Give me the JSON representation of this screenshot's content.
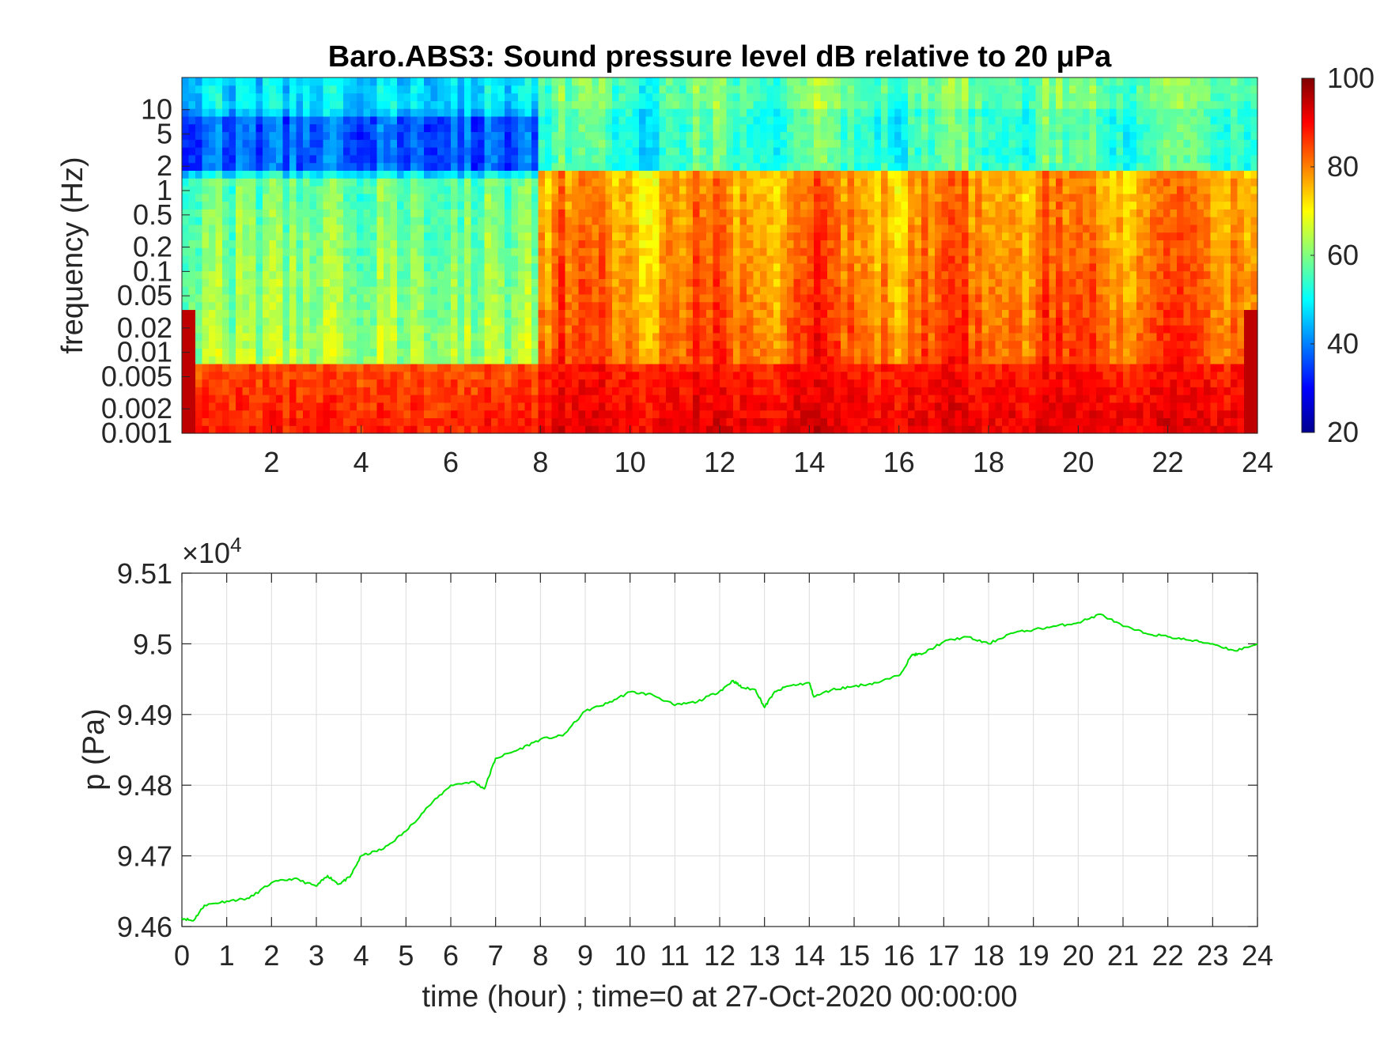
{
  "chart_data": [
    {
      "type": "heatmap",
      "title": "Baro.ABS3: Sound pressure level dB relative to 20 μPa",
      "ylabel": "frequency (Hz)",
      "xlabel": "",
      "x_ticks": [
        "2",
        "4",
        "6",
        "8",
        "10",
        "12",
        "14",
        "16",
        "18",
        "20",
        "22",
        "24"
      ],
      "y_ticks": [
        "0.001",
        "0.002",
        "0.005",
        "0.01",
        "0.02",
        "0.05",
        "0.1",
        "0.2",
        "0.5",
        "1",
        "2",
        "5",
        "10"
      ],
      "y_tick_values": [
        0.001,
        0.002,
        0.005,
        0.01,
        0.02,
        0.05,
        0.1,
        0.2,
        0.5,
        1,
        2,
        5,
        10
      ],
      "y_scale": "log",
      "xlim": [
        0,
        24
      ],
      "ylim": [
        0.001,
        25
      ],
      "colormap": "jet",
      "clim": [
        20,
        100
      ],
      "colorbar_ticks": [
        "20",
        "40",
        "60",
        "80",
        "100"
      ],
      "colorbar_tick_values": [
        20,
        40,
        60,
        80,
        100
      ],
      "grid": false,
      "regimes": [
        {
          "t": [
            0,
            8
          ],
          "low_freq_db": 88,
          "mid_freq_db": 60,
          "high_freq_db": 45
        },
        {
          "t": [
            8,
            24
          ],
          "low_freq_db": 92,
          "mid_freq_db": 80,
          "high_freq_db": 55
        }
      ]
    },
    {
      "type": "line",
      "title": "",
      "xlabel": "time (hour) ; time=0 at 27-Oct-2020 00:00:00",
      "ylabel": "p (Pa)",
      "y_exponent_base": "10",
      "y_exponent_power": "4",
      "x_ticks": [
        "0",
        "1",
        "2",
        "3",
        "4",
        "5",
        "6",
        "7",
        "8",
        "9",
        "10",
        "11",
        "12",
        "13",
        "14",
        "15",
        "16",
        "17",
        "18",
        "19",
        "20",
        "21",
        "22",
        "23",
        "24"
      ],
      "y_ticks": [
        "9.46",
        "9.47",
        "9.48",
        "9.49",
        "9.5",
        "9.51"
      ],
      "y_tick_values": [
        9.46,
        9.47,
        9.48,
        9.49,
        9.5,
        9.51
      ],
      "xlim": [
        0,
        24
      ],
      "ylim": [
        9.46,
        9.51
      ],
      "grid": true,
      "color": "#00e400",
      "series": [
        {
          "x": [
            0,
            0.25,
            0.5,
            1,
            1.5,
            2,
            2.5,
            3,
            3.25,
            3.5,
            3.75,
            4,
            4.5,
            5,
            5.5,
            6,
            6.5,
            6.75,
            7,
            7.5,
            8,
            8.5,
            9,
            9.5,
            10,
            10.5,
            11,
            11.5,
            12,
            12.3,
            12.5,
            12.8,
            13,
            13.2,
            13.5,
            14,
            14.1,
            14.5,
            15,
            15.5,
            16,
            16.3,
            16.5,
            17,
            17.5,
            18,
            18.5,
            19,
            19.5,
            20,
            20.5,
            21,
            21.5,
            22,
            22.5,
            23,
            23.5,
            24
          ],
          "y": [
            9.4612,
            9.4608,
            9.463,
            9.4636,
            9.464,
            9.4662,
            9.4668,
            9.4657,
            9.4672,
            9.466,
            9.467,
            9.47,
            9.471,
            9.4735,
            9.477,
            9.48,
            9.4805,
            9.4795,
            9.4838,
            9.485,
            9.4865,
            9.487,
            9.4905,
            9.4916,
            9.4932,
            9.4928,
            9.4913,
            9.4918,
            9.4933,
            9.4948,
            9.4938,
            9.4935,
            9.491,
            9.493,
            9.494,
            9.4945,
            9.4925,
            9.4935,
            9.494,
            9.4945,
            9.4955,
            9.4985,
            9.4985,
            9.5003,
            9.501,
            9.5,
            9.5015,
            9.502,
            9.5025,
            9.503,
            9.5042,
            9.5025,
            9.5015,
            9.501,
            9.5005,
            9.5,
            9.499,
            9.5
          ]
        }
      ]
    }
  ]
}
